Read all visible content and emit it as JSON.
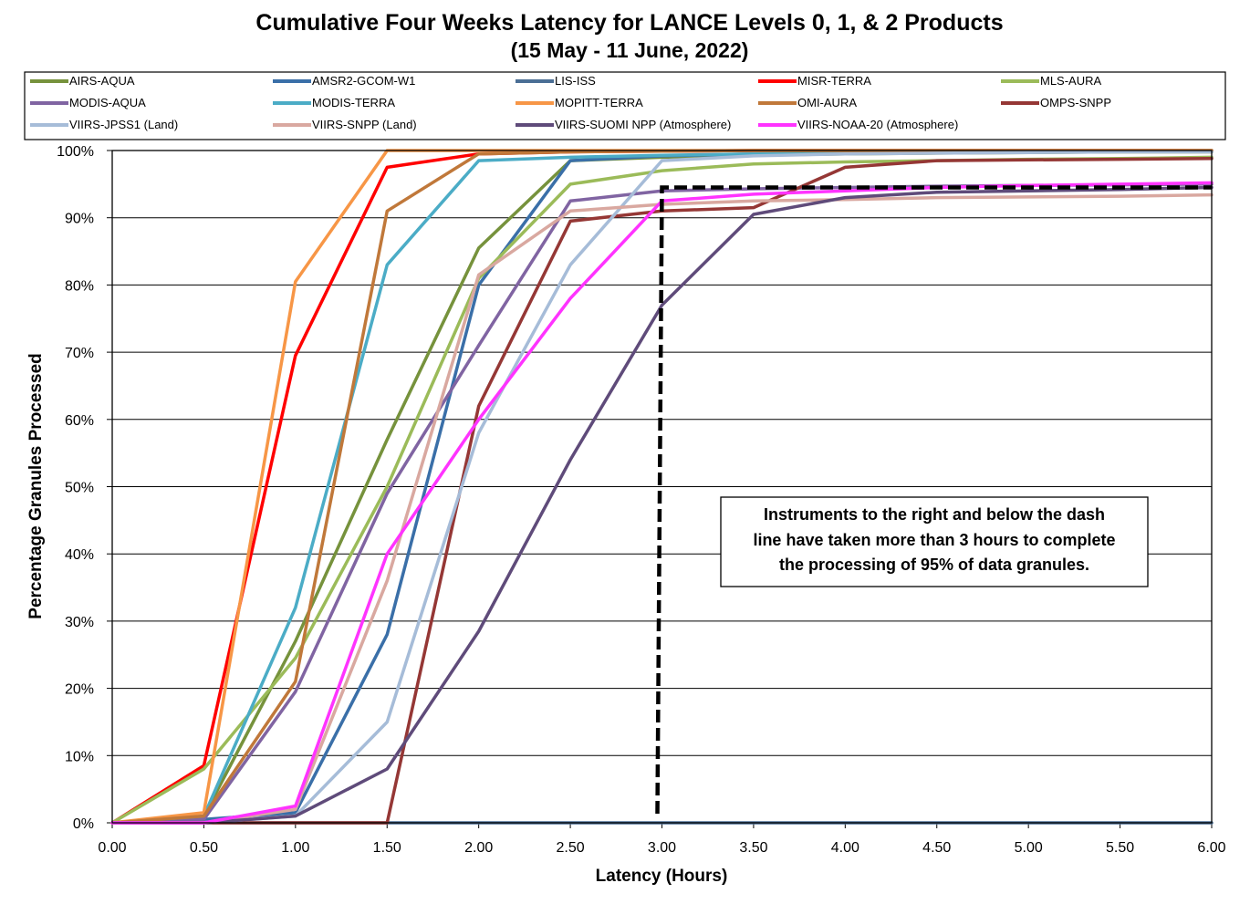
{
  "chart_data": {
    "type": "line",
    "title": "Cumulative Four Weeks Latency  for LANCE Levels 0, 1, & 2 Products",
    "subtitle": "(15  May   -  11  June,  2022)",
    "xlabel": "Latency (Hours)",
    "ylabel": "Percentage Granules Processed",
    "x": [
      0,
      0.5,
      1,
      1.5,
      2,
      2.5,
      3,
      3.5,
      4,
      4.5,
      5,
      5.5,
      6
    ],
    "x_tick_labels": [
      "0.00",
      "0.50",
      "1.00",
      "1.50",
      "2.00",
      "2.50",
      "3.00",
      "3.50",
      "4.00",
      "4.50",
      "5.00",
      "5.50",
      "6.00"
    ],
    "y_tick_labels": [
      "0%",
      "10%",
      "20%",
      "30%",
      "40%",
      "50%",
      "60%",
      "70%",
      "80%",
      "90%",
      "100%"
    ],
    "xlim": [
      0,
      6
    ],
    "ylim": [
      0,
      100
    ],
    "grid": "horizontal",
    "legend_position": "top",
    "series": [
      {
        "name": "AIRS-AQUA",
        "color": "#76923C",
        "values": [
          0,
          1,
          27,
          57,
          85.5,
          98.5,
          99,
          99.3,
          99.5,
          99.6,
          99.7,
          99.8,
          99.8
        ]
      },
      {
        "name": "AMSR2-GCOM-W1",
        "color": "#3A6FA8",
        "values": [
          0,
          0.5,
          1.5,
          28,
          80,
          98.5,
          99.2,
          99.5,
          99.7,
          99.8,
          99.8,
          99.9,
          99.9
        ]
      },
      {
        "name": "LIS-ISS",
        "color": "#4A6E95",
        "values": [
          0,
          0,
          0,
          0,
          0,
          0,
          0,
          0,
          0,
          0,
          0,
          0,
          0
        ]
      },
      {
        "name": "MISR-TERRA",
        "color": "#FF0000",
        "values": [
          0,
          8.5,
          69.5,
          97.5,
          99.5,
          99.8,
          99.9,
          100,
          100,
          100,
          100,
          100,
          100
        ]
      },
      {
        "name": "MLS-AURA",
        "color": "#9BBB59",
        "values": [
          0,
          8,
          24.5,
          50,
          81,
          95,
          97,
          98,
          98.3,
          98.5,
          98.7,
          98.8,
          99
        ]
      },
      {
        "name": "MODIS-AQUA",
        "color": "#8064A2",
        "values": [
          0,
          0.5,
          19.5,
          49,
          71,
          92.5,
          94,
          94.3,
          94.5,
          94.7,
          94.8,
          94.9,
          95
        ]
      },
      {
        "name": "MODIS-TERRA",
        "color": "#4BACC6",
        "values": [
          0,
          1,
          32,
          83,
          98.5,
          99,
          99.3,
          99.5,
          99.7,
          99.8,
          99.9,
          99.9,
          100
        ]
      },
      {
        "name": "MOPITT-TERRA",
        "color": "#F79646",
        "values": [
          0,
          1.5,
          80.5,
          100,
          100,
          100,
          100,
          100,
          100,
          100,
          100,
          100,
          100
        ]
      },
      {
        "name": "OMI-AURA",
        "color": "#C0783A",
        "values": [
          0,
          1,
          21,
          91,
          99.5,
          99.8,
          99.9,
          100,
          100,
          100,
          100,
          100,
          100
        ]
      },
      {
        "name": "OMPS-SNPP",
        "color": "#953735",
        "values": [
          0,
          0,
          0,
          0,
          62,
          89.5,
          91,
          91.5,
          97.5,
          98.5,
          98.6,
          98.7,
          98.8
        ]
      },
      {
        "name": "VIIRS-JPSS1 (Land)",
        "color": "#A6BCD8",
        "values": [
          0,
          0,
          1,
          15,
          58,
          83,
          98.5,
          99.2,
          99.5,
          99.6,
          99.7,
          99.8,
          99.8
        ]
      },
      {
        "name": "VIIRS-SNPP (Land)",
        "color": "#D9A8A0",
        "values": [
          0,
          0,
          2,
          36,
          81.5,
          91,
          92,
          92.5,
          92.7,
          93,
          93.1,
          93.2,
          93.4
        ]
      },
      {
        "name": "VIIRS-SUOMI NPP (Atmosphere)",
        "color": "#5F4B7A",
        "values": [
          0,
          0,
          1,
          8,
          28.5,
          54,
          77,
          90.5,
          93,
          93.8,
          94,
          94.2,
          94.5
        ]
      },
      {
        "name": "VIIRS-NOAA-20 (Atmosphere)",
        "color": "#FF33FF",
        "values": [
          0,
          0,
          2.5,
          40,
          60,
          78,
          92.5,
          93.5,
          94,
          94.5,
          94.8,
          95,
          95.2
        ]
      }
    ],
    "threshold_line": {
      "x": 3,
      "y": 94.5,
      "style": "dashed",
      "color": "#000000"
    },
    "annotation": {
      "lines": [
        "Instruments to the right and below the dash",
        "line have taken more than 3 hours to complete",
        "the processing of 95% of data granules."
      ]
    }
  }
}
